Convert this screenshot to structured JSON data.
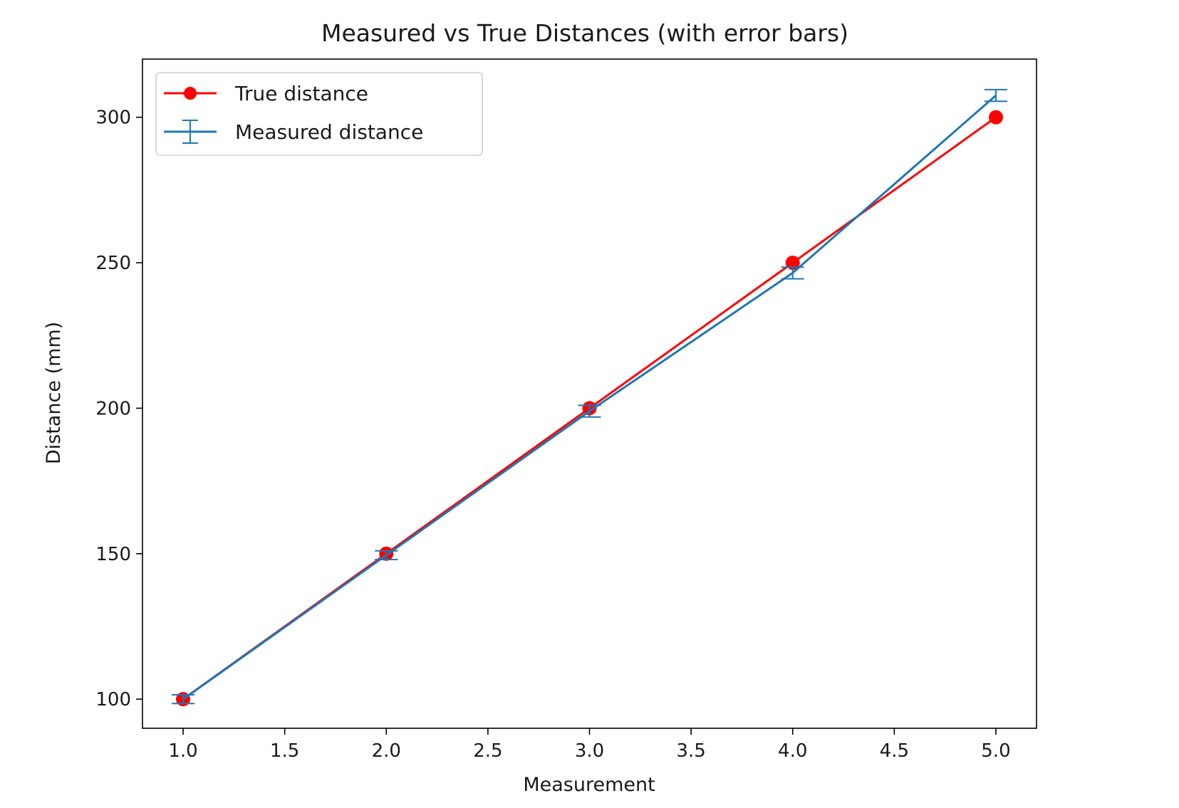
{
  "chart_data": {
    "type": "line",
    "title": "Measured vs True Distances (with error bars)",
    "xlabel": "Measurement",
    "ylabel": "Distance (mm)",
    "xlim": [
      0.8,
      5.2
    ],
    "ylim": [
      90,
      320
    ],
    "xticks": [
      1.0,
      1.5,
      2.0,
      2.5,
      3.0,
      3.5,
      4.0,
      4.5,
      5.0
    ],
    "xtick_labels": [
      "1.0",
      "1.5",
      "2.0",
      "2.5",
      "3.0",
      "3.5",
      "4.0",
      "4.5",
      "5.0"
    ],
    "yticks": [
      100,
      150,
      200,
      250,
      300
    ],
    "ytick_labels": [
      "100",
      "150",
      "200",
      "250",
      "300"
    ],
    "grid": false,
    "legend_position": "upper-left",
    "series": [
      {
        "name": "True distance",
        "color": "#ff0000",
        "marker": "circle",
        "x": [
          1,
          2,
          3,
          4,
          5
        ],
        "y": [
          100,
          150,
          200,
          250,
          300
        ]
      },
      {
        "name": "Measured distance",
        "color": "#1f77b4",
        "marker": "errorbar",
        "x": [
          1,
          2,
          3,
          4,
          5
        ],
        "y": [
          100,
          149.5,
          199,
          246.5,
          307.5
        ],
        "yerr": [
          1.5,
          1.5,
          2.0,
          2.0,
          2.0
        ]
      }
    ]
  }
}
